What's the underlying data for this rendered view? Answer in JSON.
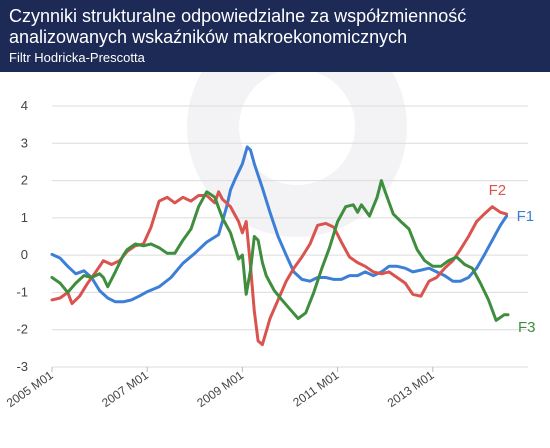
{
  "header": {
    "title_line1": "Czynniki strukturalne odpowiedzialne za współzmienność",
    "title_line2": "analizowanych wskaźników makroekonomicznych",
    "subtitle": "Filtr Hodricka-Prescotta"
  },
  "chart_data": {
    "type": "line",
    "title": "Czynniki strukturalne odpowiedzialne za współzmienność analizowanych wskaźników makroekonomicznych",
    "subtitle": "Filtr Hodricka-Prescotta",
    "xlabel": "",
    "ylabel": "",
    "ylim": [
      -3,
      4
    ],
    "yticks": [
      -3,
      -2,
      -1,
      0,
      1,
      2,
      3,
      4
    ],
    "xlim": [
      2005.0,
      2015.0
    ],
    "xticks": [
      {
        "label": "2005 M01",
        "x": 2005.0
      },
      {
        "label": "2007 M01",
        "x": 2007.0
      },
      {
        "label": "2009 M01",
        "x": 2009.0
      },
      {
        "label": "2011 M01",
        "x": 2011.0
      },
      {
        "label": "2013 M01",
        "x": 2013.0
      }
    ],
    "grid": "horizontal",
    "legend": "none (series labelled at line ends)",
    "series": [
      {
        "name": "F1",
        "color": "#3d7fd6",
        "points": [
          [
            2005.0,
            0.02
          ],
          [
            2005.17,
            -0.08
          ],
          [
            2005.33,
            -0.3
          ],
          [
            2005.5,
            -0.5
          ],
          [
            2005.67,
            -0.42
          ],
          [
            2005.83,
            -0.6
          ],
          [
            2006.0,
            -0.95
          ],
          [
            2006.17,
            -1.15
          ],
          [
            2006.33,
            -1.25
          ],
          [
            2006.5,
            -1.25
          ],
          [
            2006.67,
            -1.2
          ],
          [
            2006.83,
            -1.1
          ],
          [
            2007.0,
            -0.98
          ],
          [
            2007.25,
            -0.85
          ],
          [
            2007.5,
            -0.6
          ],
          [
            2007.75,
            -0.22
          ],
          [
            2008.0,
            0.05
          ],
          [
            2008.25,
            0.35
          ],
          [
            2008.5,
            0.55
          ],
          [
            2008.67,
            1.3
          ],
          [
            2008.75,
            1.75
          ],
          [
            2008.85,
            2.05
          ],
          [
            2009.0,
            2.45
          ],
          [
            2009.1,
            2.9
          ],
          [
            2009.17,
            2.82
          ],
          [
            2009.25,
            2.45
          ],
          [
            2009.42,
            1.8
          ],
          [
            2009.58,
            1.15
          ],
          [
            2009.75,
            0.5
          ],
          [
            2009.92,
            0.0
          ],
          [
            2010.08,
            -0.45
          ],
          [
            2010.25,
            -0.65
          ],
          [
            2010.42,
            -0.7
          ],
          [
            2010.58,
            -0.6
          ],
          [
            2010.75,
            -0.6
          ],
          [
            2010.92,
            -0.65
          ],
          [
            2011.08,
            -0.65
          ],
          [
            2011.25,
            -0.55
          ],
          [
            2011.42,
            -0.55
          ],
          [
            2011.58,
            -0.45
          ],
          [
            2011.75,
            -0.55
          ],
          [
            2011.92,
            -0.45
          ],
          [
            2012.08,
            -0.3
          ],
          [
            2012.25,
            -0.3
          ],
          [
            2012.42,
            -0.35
          ],
          [
            2012.58,
            -0.45
          ],
          [
            2012.75,
            -0.4
          ],
          [
            2012.92,
            -0.35
          ],
          [
            2013.08,
            -0.45
          ],
          [
            2013.25,
            -0.55
          ],
          [
            2013.42,
            -0.7
          ],
          [
            2013.58,
            -0.7
          ],
          [
            2013.75,
            -0.6
          ],
          [
            2013.92,
            -0.35
          ],
          [
            2014.08,
            0.0
          ],
          [
            2014.25,
            0.4
          ],
          [
            2014.42,
            0.8
          ],
          [
            2014.55,
            1.05
          ]
        ]
      },
      {
        "name": "F2",
        "color": "#d9534f",
        "points": [
          [
            2005.0,
            -1.2
          ],
          [
            2005.17,
            -1.15
          ],
          [
            2005.33,
            -1.0
          ],
          [
            2005.42,
            -1.3
          ],
          [
            2005.58,
            -1.1
          ],
          [
            2005.75,
            -0.75
          ],
          [
            2005.92,
            -0.45
          ],
          [
            2006.08,
            -0.15
          ],
          [
            2006.25,
            -0.25
          ],
          [
            2006.42,
            -0.15
          ],
          [
            2006.58,
            0.1
          ],
          [
            2006.75,
            0.25
          ],
          [
            2006.92,
            0.3
          ],
          [
            2007.08,
            0.75
          ],
          [
            2007.25,
            1.45
          ],
          [
            2007.42,
            1.55
          ],
          [
            2007.58,
            1.4
          ],
          [
            2007.75,
            1.55
          ],
          [
            2007.92,
            1.45
          ],
          [
            2008.08,
            1.6
          ],
          [
            2008.25,
            1.6
          ],
          [
            2008.42,
            1.4
          ],
          [
            2008.5,
            1.7
          ],
          [
            2008.58,
            1.5
          ],
          [
            2008.75,
            1.3
          ],
          [
            2008.92,
            0.9
          ],
          [
            2009.0,
            0.6
          ],
          [
            2009.08,
            0.9
          ],
          [
            2009.17,
            -0.3
          ],
          [
            2009.25,
            -1.5
          ],
          [
            2009.33,
            -2.3
          ],
          [
            2009.42,
            -2.4
          ],
          [
            2009.58,
            -1.7
          ],
          [
            2009.75,
            -1.2
          ],
          [
            2009.92,
            -0.7
          ],
          [
            2010.08,
            -0.35
          ],
          [
            2010.25,
            -0.05
          ],
          [
            2010.42,
            0.3
          ],
          [
            2010.58,
            0.8
          ],
          [
            2010.75,
            0.85
          ],
          [
            2010.92,
            0.75
          ],
          [
            2011.08,
            0.35
          ],
          [
            2011.25,
            -0.05
          ],
          [
            2011.42,
            -0.2
          ],
          [
            2011.58,
            -0.3
          ],
          [
            2011.75,
            -0.45
          ],
          [
            2011.92,
            -0.5
          ],
          [
            2012.08,
            -0.45
          ],
          [
            2012.25,
            -0.6
          ],
          [
            2012.42,
            -0.75
          ],
          [
            2012.58,
            -1.05
          ],
          [
            2012.75,
            -1.1
          ],
          [
            2012.92,
            -0.7
          ],
          [
            2013.08,
            -0.6
          ],
          [
            2013.25,
            -0.35
          ],
          [
            2013.42,
            -0.15
          ],
          [
            2013.58,
            0.15
          ],
          [
            2013.75,
            0.5
          ],
          [
            2013.92,
            0.9
          ],
          [
            2014.08,
            1.1
          ],
          [
            2014.25,
            1.3
          ],
          [
            2014.42,
            1.15
          ],
          [
            2014.55,
            1.1
          ]
        ]
      },
      {
        "name": "F3",
        "color": "#3e8e3e",
        "points": [
          [
            2005.0,
            -0.6
          ],
          [
            2005.17,
            -0.75
          ],
          [
            2005.33,
            -1.0
          ],
          [
            2005.5,
            -0.75
          ],
          [
            2005.67,
            -0.55
          ],
          [
            2005.83,
            -0.6
          ],
          [
            2006.0,
            -0.5
          ],
          [
            2006.08,
            -0.6
          ],
          [
            2006.17,
            -0.85
          ],
          [
            2006.33,
            -0.45
          ],
          [
            2006.5,
            0.0
          ],
          [
            2006.58,
            0.15
          ],
          [
            2006.75,
            0.3
          ],
          [
            2006.92,
            0.25
          ],
          [
            2007.08,
            0.3
          ],
          [
            2007.25,
            0.2
          ],
          [
            2007.42,
            0.05
          ],
          [
            2007.58,
            0.05
          ],
          [
            2007.75,
            0.4
          ],
          [
            2007.92,
            0.7
          ],
          [
            2008.08,
            1.3
          ],
          [
            2008.25,
            1.7
          ],
          [
            2008.42,
            1.55
          ],
          [
            2008.58,
            1.0
          ],
          [
            2008.75,
            0.6
          ],
          [
            2008.92,
            -0.1
          ],
          [
            2009.0,
            0.0
          ],
          [
            2009.08,
            -1.05
          ],
          [
            2009.17,
            -0.4
          ],
          [
            2009.25,
            0.5
          ],
          [
            2009.33,
            0.4
          ],
          [
            2009.42,
            -0.2
          ],
          [
            2009.5,
            -0.55
          ],
          [
            2009.67,
            -0.95
          ],
          [
            2009.83,
            -1.2
          ],
          [
            2010.0,
            -1.45
          ],
          [
            2010.17,
            -1.7
          ],
          [
            2010.33,
            -1.55
          ],
          [
            2010.5,
            -1.0
          ],
          [
            2010.67,
            -0.35
          ],
          [
            2010.83,
            0.2
          ],
          [
            2011.0,
            0.9
          ],
          [
            2011.17,
            1.3
          ],
          [
            2011.33,
            1.35
          ],
          [
            2011.42,
            1.15
          ],
          [
            2011.5,
            1.35
          ],
          [
            2011.67,
            1.05
          ],
          [
            2011.83,
            1.55
          ],
          [
            2011.92,
            2.0
          ],
          [
            2012.0,
            1.7
          ],
          [
            2012.17,
            1.1
          ],
          [
            2012.33,
            0.9
          ],
          [
            2012.5,
            0.7
          ],
          [
            2012.67,
            0.15
          ],
          [
            2012.83,
            -0.15
          ],
          [
            2013.0,
            -0.3
          ],
          [
            2013.17,
            -0.3
          ],
          [
            2013.33,
            -0.15
          ],
          [
            2013.5,
            -0.05
          ],
          [
            2013.67,
            -0.25
          ],
          [
            2013.83,
            -0.35
          ],
          [
            2014.0,
            -0.75
          ],
          [
            2014.17,
            -1.2
          ],
          [
            2014.33,
            -1.75
          ],
          [
            2014.5,
            -1.6
          ],
          [
            2014.58,
            -1.6
          ]
        ]
      }
    ]
  }
}
